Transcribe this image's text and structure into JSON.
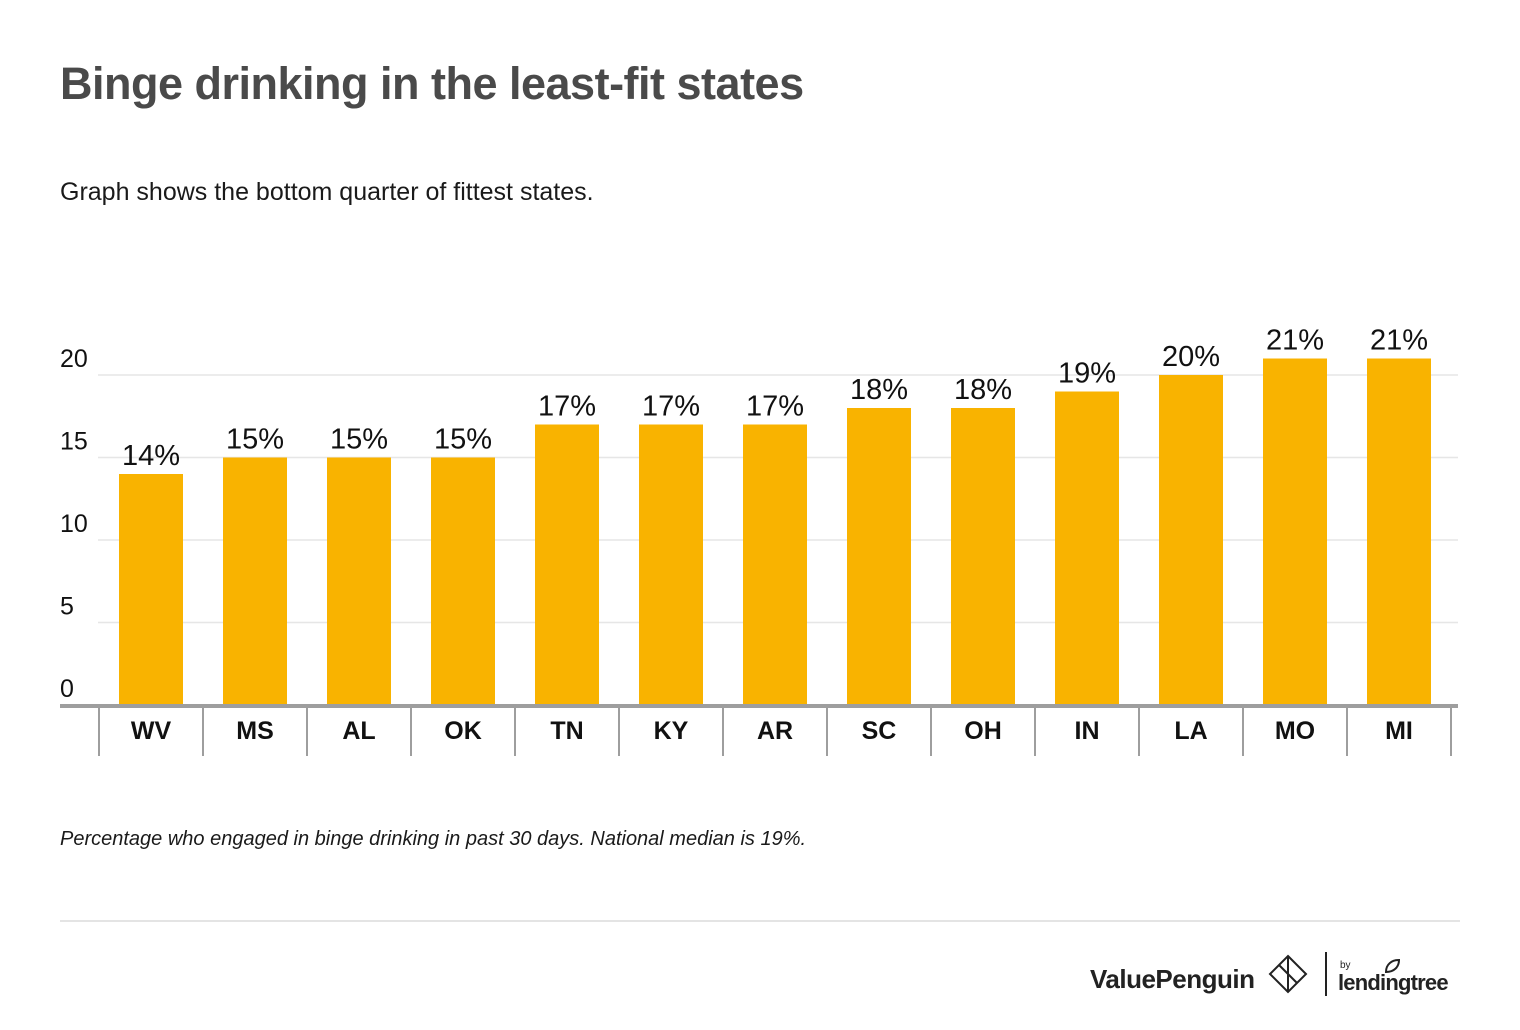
{
  "header": {
    "title": "Binge drinking in the least-fit states",
    "subtitle": "Graph shows the bottom quarter of fittest states."
  },
  "chart_data": {
    "type": "bar",
    "categories": [
      "WV",
      "MS",
      "AL",
      "OK",
      "TN",
      "KY",
      "AR",
      "SC",
      "OH",
      "IN",
      "LA",
      "MO",
      "MI"
    ],
    "values": [
      14,
      15,
      15,
      15,
      17,
      17,
      17,
      18,
      18,
      19,
      20,
      21,
      21
    ],
    "data_labels": [
      "14%",
      "15%",
      "15%",
      "15%",
      "17%",
      "17%",
      "17%",
      "18%",
      "18%",
      "19%",
      "20%",
      "21%",
      "21%"
    ],
    "title": "Binge drinking in the least-fit states",
    "xlabel": "",
    "ylabel": "",
    "ylim": [
      0,
      20
    ],
    "yticks": [
      0,
      5,
      10,
      15,
      20
    ],
    "grid": true,
    "bar_color": "#F9B300"
  },
  "footnote": "Percentage who engaged in binge drinking in past 30 days. National median is 19%.",
  "footer": {
    "brand": "ValuePenguin",
    "partner_by": "by",
    "partner": "lendingtree"
  },
  "colors": {
    "title": "#4A4A4A",
    "bar": "#F9B300",
    "grid": "#E6E6E6",
    "axis": "#9E9E9E"
  },
  "icons": [
    "valuepenguin-logo-icon",
    "lendingtree-leaf-icon"
  ]
}
